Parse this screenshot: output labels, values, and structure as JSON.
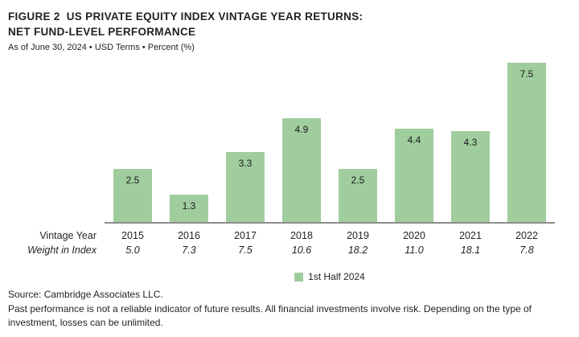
{
  "header": {
    "title_line1": "FIGURE 2  US PRIVATE EQUITY INDEX VINTAGE YEAR RETURNS:",
    "title_line2": "NET FUND-LEVEL PERFORMANCE",
    "subtitle": "As of June 30, 2024 • USD Terms • Percent (%)"
  },
  "chart_data": {
    "type": "bar",
    "title": "US Private Equity Index Vintage Year Returns: Net Fund-Level Performance",
    "categories": [
      "2015",
      "2016",
      "2017",
      "2018",
      "2019",
      "2020",
      "2021",
      "2022"
    ],
    "series": [
      {
        "name": "1st Half 2024",
        "values": [
          2.5,
          1.3,
          3.3,
          4.9,
          2.5,
          4.4,
          4.3,
          7.5
        ]
      }
    ],
    "weight_in_index": [
      5.0,
      7.3,
      7.5,
      10.6,
      18.2,
      11.0,
      18.1,
      7.8
    ],
    "row_labels": {
      "categories": "Vintage Year",
      "weights": "Weight in Index"
    },
    "xlabel": "Vintage Year",
    "ylabel": "Percent (%)",
    "ylim": [
      0,
      8
    ],
    "grid": false,
    "legend_position": "bottom",
    "bar_color": "#a0cd9e",
    "axis_color": "#8c8c8c",
    "value_labels": "inside-top"
  },
  "footer": {
    "source": "Source: Cambridge Associates LLC.",
    "disclaimer": "Past performance is not a reliable indicator of future results. All financial investments involve risk. Depending on the type of investment, losses can be unlimited."
  }
}
